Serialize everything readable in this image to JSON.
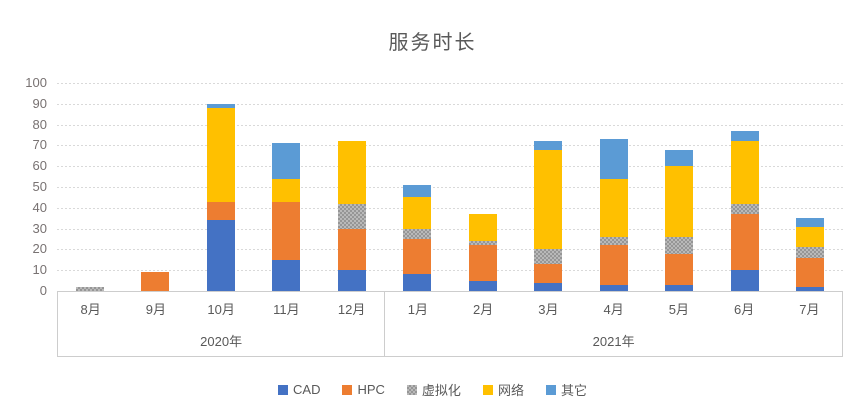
{
  "chart_data": {
    "type": "bar",
    "stacked": true,
    "title": "服务时长",
    "categories": [
      "8月",
      "9月",
      "10月",
      "11月",
      "12月",
      "1月",
      "2月",
      "3月",
      "4月",
      "5月",
      "6月",
      "7月"
    ],
    "category_groups": [
      {
        "label": "2020年",
        "span": 5
      },
      {
        "label": "2021年",
        "span": 7
      }
    ],
    "series": [
      {
        "name": "CAD",
        "color": "#4472C4",
        "pattern": "solid",
        "values": [
          0,
          0,
          34,
          15,
          10,
          8,
          5,
          4,
          3,
          3,
          10,
          2
        ]
      },
      {
        "name": "HPC",
        "color": "#ED7D31",
        "pattern": "solid",
        "values": [
          0,
          9,
          9,
          28,
          20,
          17,
          17,
          9,
          19,
          15,
          27,
          14
        ]
      },
      {
        "name": "虚拟化",
        "color": "#A5A5A5",
        "pattern": "checker",
        "values": [
          2,
          0,
          0,
          0,
          12,
          5,
          2,
          7,
          4,
          8,
          5,
          5
        ]
      },
      {
        "name": "网络",
        "color": "#FFC000",
        "pattern": "solid",
        "values": [
          0,
          0,
          45,
          11,
          30,
          15,
          13,
          48,
          28,
          34,
          30,
          10
        ]
      },
      {
        "name": "其它",
        "color": "#5B9BD5",
        "pattern": "solid",
        "values": [
          0,
          0,
          2,
          17,
          0,
          6,
          0,
          4,
          19,
          8,
          5,
          4
        ]
      }
    ],
    "totals": [
      2,
      9,
      90,
      71,
      72,
      51,
      37,
      72,
      73,
      68,
      77,
      35
    ],
    "ylim": [
      0,
      100
    ],
    "ytick_step": 10,
    "ytick_labels": [
      "0",
      "10",
      "20",
      "30",
      "40",
      "50",
      "60",
      "70",
      "80",
      "90",
      "100"
    ],
    "grid": "horizontal-dashed",
    "legend_position": "bottom",
    "xlabel": "",
    "ylabel": ""
  },
  "styles": {
    "title_color": "#595959",
    "axis_number_color": "#787272",
    "category_label_color": "#595959",
    "gridline_color": "#D9D9D9",
    "axis_border_color": "#CDCDCD",
    "background": "#FFFFFF"
  }
}
